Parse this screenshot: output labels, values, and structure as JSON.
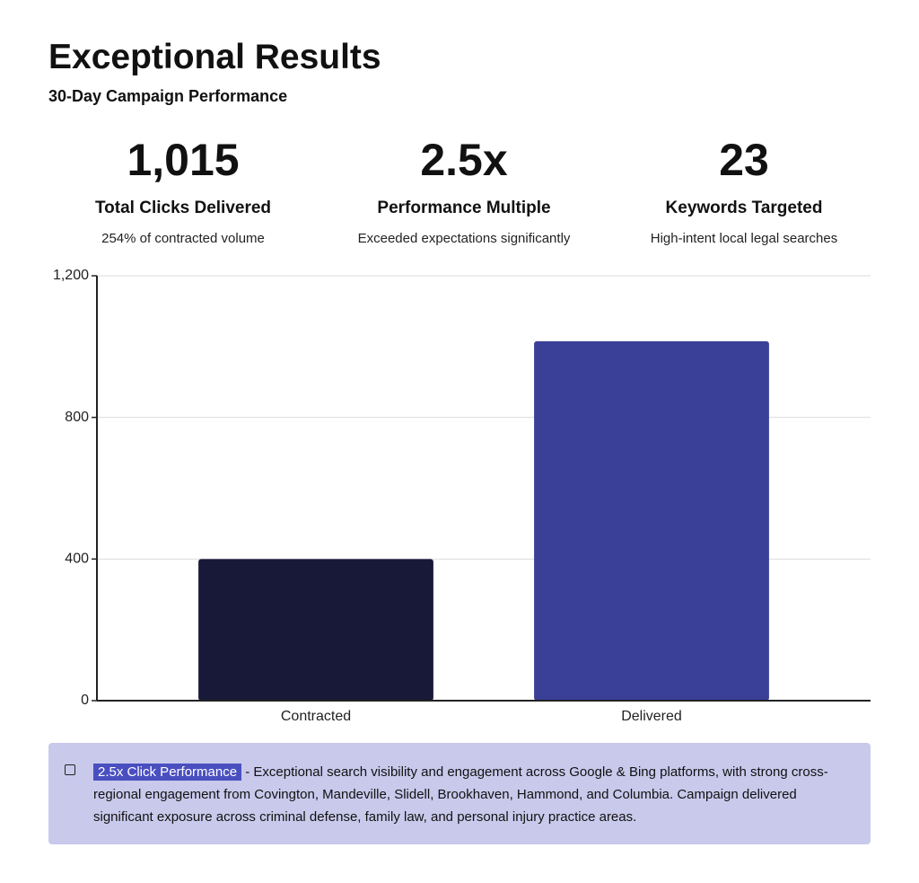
{
  "header": {
    "title": "Exceptional Results",
    "subtitle": "30-Day Campaign Performance"
  },
  "stats": [
    {
      "value": "1,015",
      "label": "Total Clicks Delivered",
      "detail": "254% of contracted volume"
    },
    {
      "value": "2.5x",
      "label": "Performance Multiple",
      "detail": "Exceeded expectations significantly"
    },
    {
      "value": "23",
      "label": "Keywords Targeted",
      "detail": "High-intent local legal searches"
    }
  ],
  "chart_data": {
    "type": "bar",
    "categories": [
      "Contracted",
      "Delivered"
    ],
    "values": [
      400,
      1015
    ],
    "colors": [
      "#181838",
      "#3a3f98"
    ],
    "ylim": [
      0,
      1200
    ],
    "yticks": [
      0,
      400,
      800,
      {
        "value": 1200,
        "label": "1,200"
      }
    ],
    "grid": true
  },
  "note": {
    "highlight": "2.5x Click Performance",
    "text": "- Exceptional search visibility and engagement across Google & Bing platforms, with strong cross-regional engagement from Covington, Mandeville, Slidell, Brookhaven, Hammond, and Columbia. Campaign delivered significant exposure across criminal defense, family law, and personal injury practice areas."
  }
}
